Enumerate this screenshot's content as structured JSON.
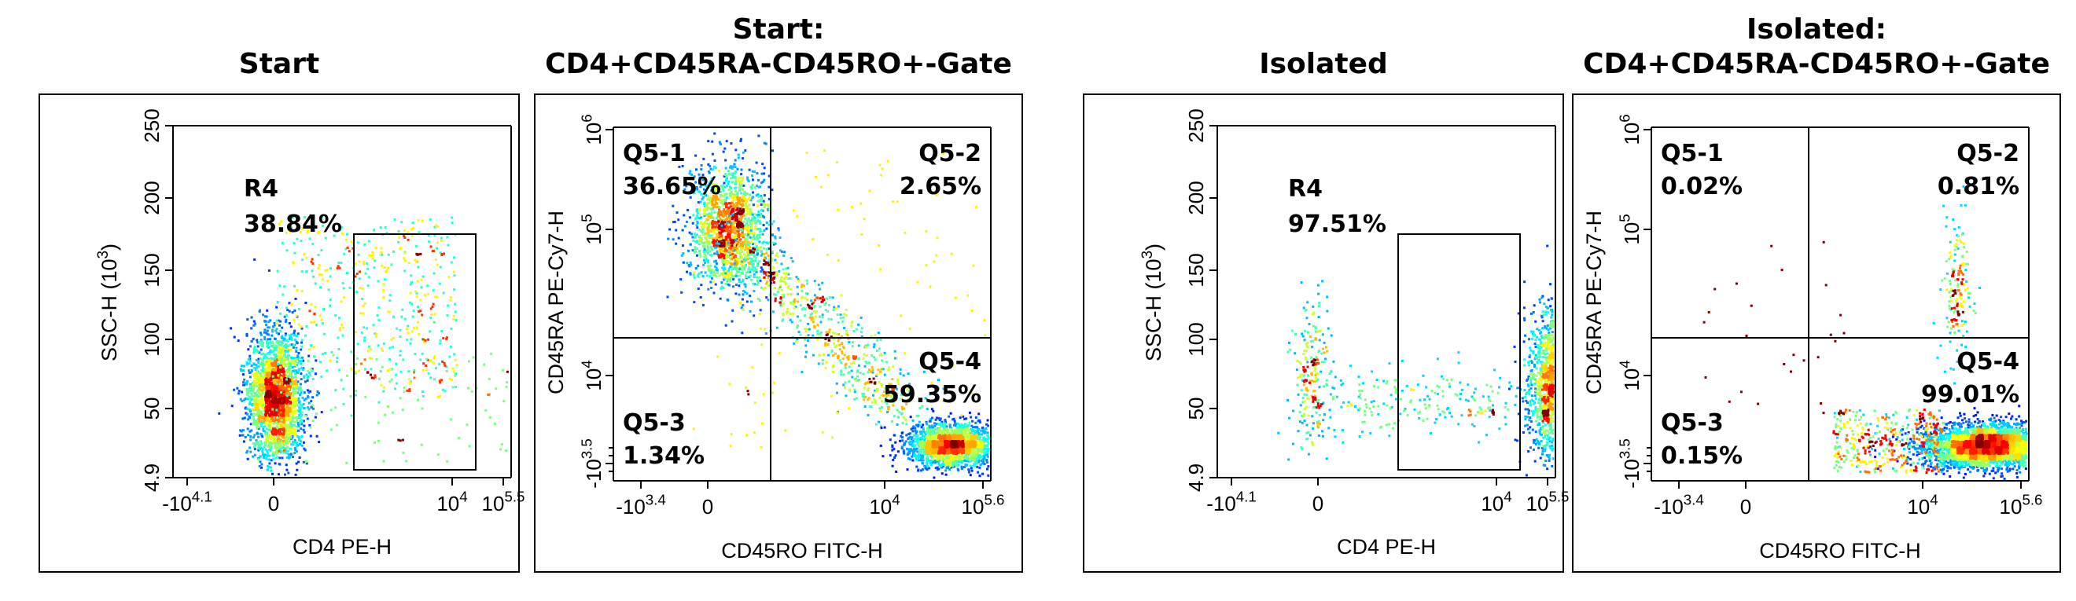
{
  "panels": [
    {
      "title": "Start",
      "xlabel": "CD4 PE-H",
      "ylabel": "SSC-H (10",
      "ylabel_sup": "3",
      "ylabel_end": ")",
      "x_ticks": [
        {
          "base": "-10",
          "sup": "4.1"
        },
        {
          "base": "0",
          "sup": ""
        },
        {
          "base": "10",
          "sup": "4"
        },
        {
          "base": "10",
          "sup": "5.5"
        }
      ],
      "y_ticks": [
        "4.9",
        "50",
        "100",
        "150",
        "200",
        "250"
      ],
      "gates": [
        {
          "name": "R4",
          "value": "38.84%"
        }
      ]
    },
    {
      "title_line1": "Start:",
      "title_line2": "CD4+CD45RA-CD45RO+-Gate",
      "xlabel": "CD45RO FITC-H",
      "ylabel": "CD45RA PE-Cy7-H",
      "x_ticks": [
        {
          "base": "-10",
          "sup": "3.4"
        },
        {
          "base": "0",
          "sup": ""
        },
        {
          "base": "10",
          "sup": "4"
        },
        {
          "base": "10",
          "sup": "5.6"
        }
      ],
      "y_ticks": [
        {
          "base": "-10",
          "sup": "3.5"
        },
        {
          "base": "10",
          "sup": "4"
        },
        {
          "base": "10",
          "sup": "5"
        },
        {
          "base": "10",
          "sup": "6"
        }
      ],
      "gates": [
        {
          "name": "Q5-1",
          "value": "36.65%"
        },
        {
          "name": "Q5-2",
          "value": "2.65%"
        },
        {
          "name": "Q5-3",
          "value": "1.34%"
        },
        {
          "name": "Q5-4",
          "value": "59.35%"
        }
      ]
    },
    {
      "title": "Isolated",
      "xlabel": "CD4 PE-H",
      "ylabel": "SSC-H (10",
      "ylabel_sup": "3",
      "ylabel_end": ")",
      "x_ticks": [
        {
          "base": "-10",
          "sup": "4.1"
        },
        {
          "base": "0",
          "sup": ""
        },
        {
          "base": "10",
          "sup": "4"
        },
        {
          "base": "10",
          "sup": "5.5"
        }
      ],
      "y_ticks": [
        "4.9",
        "50",
        "100",
        "150",
        "200",
        "250"
      ],
      "gates": [
        {
          "name": "R4",
          "value": "97.51%"
        }
      ]
    },
    {
      "title_line1": "Isolated:",
      "title_line2": "CD4+CD45RA-CD45RO+-Gate",
      "xlabel": "CD45RO FITC-H",
      "ylabel": "CD45RA PE-Cy7-H",
      "x_ticks": [
        {
          "base": "-10",
          "sup": "3.4"
        },
        {
          "base": "0",
          "sup": ""
        },
        {
          "base": "10",
          "sup": "4"
        },
        {
          "base": "10",
          "sup": "5.6"
        }
      ],
      "y_ticks": [
        {
          "base": "-10",
          "sup": "3.5"
        },
        {
          "base": "10",
          "sup": "4"
        },
        {
          "base": "10",
          "sup": "5"
        },
        {
          "base": "10",
          "sup": "6"
        }
      ],
      "gates": [
        {
          "name": "Q5-1",
          "value": "0.02%"
        },
        {
          "name": "Q5-2",
          "value": "0.81%"
        },
        {
          "name": "Q5-3",
          "value": "0.15%"
        },
        {
          "name": "Q5-4",
          "value": "99.01%"
        }
      ]
    }
  ],
  "chart_data": [
    {
      "type": "scatter",
      "title": "Start",
      "xlabel": "CD4 PE-H",
      "ylabel": "SSC-H (10^3)",
      "x_scale": "biexponential",
      "x_ticks": [
        "-10^4.1",
        "0",
        "10^4",
        "10^5.5"
      ],
      "ylim": [
        4.9,
        250
      ],
      "y_ticks": [
        4.9,
        50,
        100,
        150,
        200,
        250
      ],
      "populations": [
        {
          "center_x": "0",
          "center_y": 60,
          "spread": "wide",
          "density": "high"
        },
        {
          "center_x": "10^5",
          "center_y": 50,
          "spread": "medium",
          "density": "high"
        }
      ],
      "gates": [
        {
          "name": "R4",
          "type": "rectangle",
          "x_range": [
            "10^3.9",
            "10^5.4"
          ],
          "y_range": [
            4.9,
            175
          ],
          "percent": 38.84
        }
      ]
    },
    {
      "type": "scatter",
      "title": "Start: CD4+CD45RA-CD45RO+-Gate",
      "xlabel": "CD45RO FITC-H",
      "ylabel": "CD45RA PE-Cy7-H",
      "x_scale": "biexponential",
      "y_scale": "biexponential",
      "x_ticks": [
        "-10^3.4",
        "0",
        "10^4",
        "10^5.6"
      ],
      "y_ticks": [
        "-10^3.5",
        "10^4",
        "10^5",
        "10^6"
      ],
      "quadrants": [
        {
          "name": "Q5-1",
          "percent": 36.65,
          "position": "top-left"
        },
        {
          "name": "Q5-2",
          "percent": 2.65,
          "position": "top-right"
        },
        {
          "name": "Q5-3",
          "percent": 1.34,
          "position": "bottom-left"
        },
        {
          "name": "Q5-4",
          "percent": 59.35,
          "position": "bottom-right"
        }
      ]
    },
    {
      "type": "scatter",
      "title": "Isolated",
      "xlabel": "CD4 PE-H",
      "ylabel": "SSC-H (10^3)",
      "x_scale": "biexponential",
      "x_ticks": [
        "-10^4.1",
        "0",
        "10^4",
        "10^5.5"
      ],
      "ylim": [
        4.9,
        250
      ],
      "y_ticks": [
        4.9,
        50,
        100,
        150,
        200,
        250
      ],
      "populations": [
        {
          "center_x": "10^5",
          "center_y": 70,
          "spread": "medium",
          "density": "high"
        },
        {
          "center_x": "0",
          "center_y": 65,
          "spread": "sparse",
          "density": "low"
        }
      ],
      "gates": [
        {
          "name": "R4",
          "type": "rectangle",
          "x_range": [
            "10^3.9",
            "10^5.4"
          ],
          "y_range": [
            4.9,
            175
          ],
          "percent": 97.51
        }
      ]
    },
    {
      "type": "scatter",
      "title": "Isolated: CD4+CD45RA-CD45RO+-Gate",
      "xlabel": "CD45RO FITC-H",
      "ylabel": "CD45RA PE-Cy7-H",
      "x_scale": "biexponential",
      "y_scale": "biexponential",
      "x_ticks": [
        "-10^3.4",
        "0",
        "10^4",
        "10^5.6"
      ],
      "y_ticks": [
        "-10^3.5",
        "10^4",
        "10^5",
        "10^6"
      ],
      "quadrants": [
        {
          "name": "Q5-1",
          "percent": 0.02,
          "position": "top-left"
        },
        {
          "name": "Q5-2",
          "percent": 0.81,
          "position": "top-right"
        },
        {
          "name": "Q5-3",
          "percent": 0.15,
          "position": "bottom-left"
        },
        {
          "name": "Q5-4",
          "percent": 99.01,
          "position": "bottom-right"
        }
      ]
    }
  ]
}
